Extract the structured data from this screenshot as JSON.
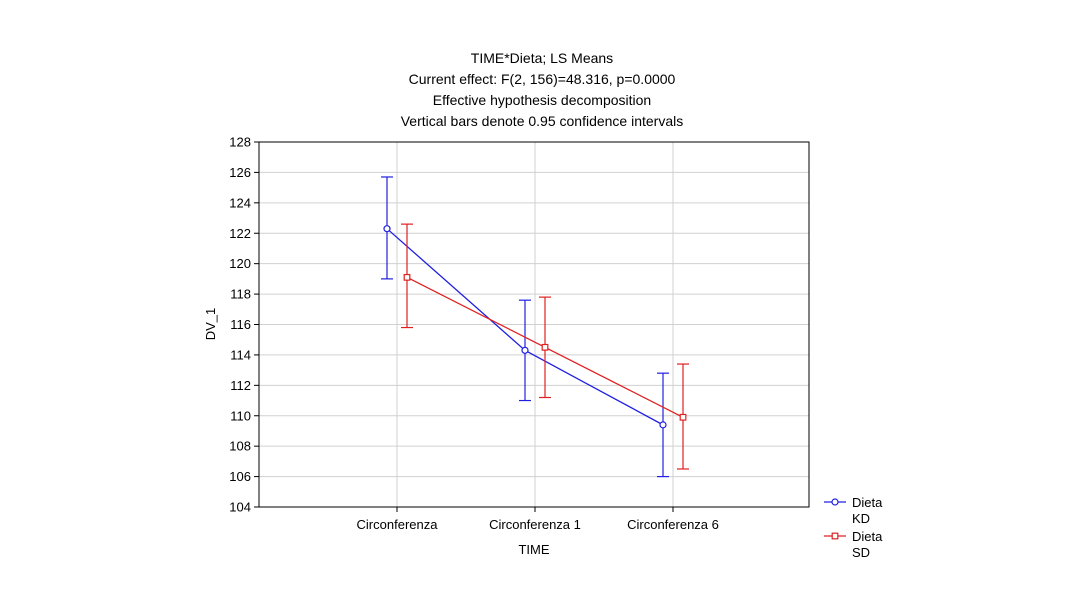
{
  "chart_data": {
    "type": "line",
    "title_lines": [
      "TIME*Dieta; LS Means",
      "Current effect: F(2, 156)=48.316, p=0.0000",
      "Effective hypothesis decomposition",
      "Vertical bars denote 0.95 confidence intervals"
    ],
    "xlabel": "TIME",
    "ylabel": "DV_1",
    "categories": [
      "Circonferenza",
      "Circonferenza 1",
      "Circonferenza 6"
    ],
    "ylim": [
      104,
      128
    ],
    "yticks": [
      104,
      106,
      108,
      110,
      112,
      114,
      116,
      118,
      120,
      122,
      124,
      126,
      128
    ],
    "grid": true,
    "legend_position": "bottom-right outside",
    "series": [
      {
        "name_line1": "Dieta",
        "name_line2": "KD",
        "color": "#2020e0",
        "marker": "circle",
        "values": [
          122.3,
          114.3,
          109.4
        ],
        "ci_low": [
          119.0,
          111.0,
          106.0
        ],
        "ci_high": [
          125.7,
          117.6,
          112.8
        ]
      },
      {
        "name_line1": "Dieta",
        "name_line2": "SD",
        "color": "#e02020",
        "marker": "square",
        "values": [
          119.1,
          114.5,
          109.9
        ],
        "ci_low": [
          115.8,
          111.2,
          106.5
        ],
        "ci_high": [
          122.6,
          117.8,
          113.4
        ]
      }
    ]
  }
}
